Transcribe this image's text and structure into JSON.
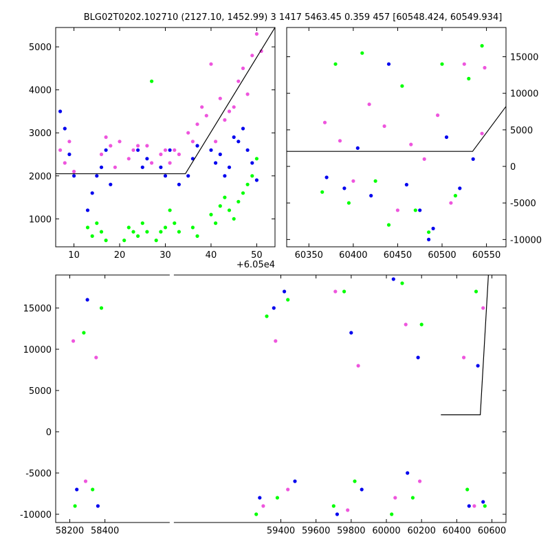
{
  "title": "BLG02T0202.102710 (2127.10, 1452.99)    3 1417 5463.45 0.359 457 [60548.424, 60549.934]",
  "colors": {
    "green": "#00ff00",
    "blue": "#0000ee",
    "magenta": "#ee55dd",
    "model": "#000000"
  },
  "chart_data": [
    {
      "type": "scatter",
      "panel": "top-left",
      "x_offset_label": "+6.05e4",
      "xlim": [
        6,
        54
      ],
      "ylim": [
        350,
        5450
      ],
      "xticks": [
        10,
        20,
        30,
        40,
        50
      ],
      "yticks": [
        1000,
        2000,
        3000,
        4000,
        5000
      ],
      "y_axis_side": "left",
      "grid": false,
      "model_line": {
        "x": [
          6,
          34.4,
          54
        ],
        "y": [
          2050,
          2050,
          5450
        ]
      },
      "series": [
        {
          "color": "magenta",
          "x": [
            7,
            8,
            9,
            10,
            16,
            17,
            18,
            19,
            20,
            22,
            23,
            24,
            26,
            27,
            29,
            30,
            31,
            32,
            33,
            35,
            36,
            37,
            38,
            39,
            40,
            41,
            42,
            43,
            44,
            45,
            46,
            47,
            48,
            49,
            50,
            51
          ],
          "y": [
            2600,
            2300,
            2800,
            2100,
            2500,
            2900,
            2700,
            2200,
            2800,
            2400,
            2600,
            2700,
            2700,
            2300,
            2500,
            2600,
            2300,
            2600,
            2500,
            3000,
            2800,
            3200,
            3600,
            3400,
            4600,
            2800,
            3800,
            3300,
            3500,
            3600,
            4200,
            4500,
            3900,
            4800,
            5300,
            4900
          ]
        },
        {
          "color": "blue",
          "x": [
            7,
            8,
            9,
            10,
            13,
            14,
            15,
            16,
            17,
            18,
            24,
            25,
            26,
            29,
            30,
            31,
            33,
            35,
            36,
            37,
            40,
            41,
            42,
            43,
            44,
            45,
            46,
            47,
            48,
            49,
            50
          ],
          "y": [
            3500,
            3100,
            2500,
            2000,
            1200,
            1600,
            2000,
            2200,
            2600,
            1800,
            2600,
            2200,
            2400,
            2200,
            2000,
            2600,
            1800,
            2000,
            2400,
            2700,
            2600,
            2300,
            2500,
            2000,
            2200,
            2900,
            2800,
            3100,
            2600,
            2300,
            1900
          ]
        },
        {
          "color": "green",
          "x": [
            13,
            14,
            15,
            16,
            17,
            21,
            22,
            23,
            24,
            25,
            26,
            27,
            28,
            29,
            30,
            31,
            32,
            33,
            36,
            37,
            40,
            41,
            42,
            43,
            44,
            45,
            46,
            47,
            48,
            49,
            50
          ],
          "y": [
            800,
            600,
            900,
            700,
            500,
            500,
            800,
            700,
            600,
            900,
            700,
            4200,
            500,
            700,
            800,
            1200,
            900,
            700,
            800,
            600,
            1100,
            900,
            1300,
            1500,
            1200,
            1000,
            1400,
            1600,
            1800,
            2000,
            2400
          ]
        }
      ]
    },
    {
      "type": "scatter",
      "panel": "top-right",
      "xlim": [
        60325,
        60572
      ],
      "ylim": [
        -11000,
        19000
      ],
      "xticks": [
        60350,
        60400,
        60450,
        60500,
        60550
      ],
      "yticks": [
        -10000,
        -5000,
        0,
        5000,
        10000,
        15000
      ],
      "y_axis_side": "right",
      "grid": false,
      "model_line": {
        "x": [
          60325,
          60534.4,
          60572
        ],
        "y": [
          2050,
          2050,
          8200
        ]
      },
      "series": [
        {
          "color": "green",
          "x": [
            60365,
            60380,
            60395,
            60410,
            60425,
            60440,
            60455,
            60470,
            60485,
            60500,
            60515,
            60530,
            60545
          ],
          "y": [
            -3500,
            14000,
            -5000,
            15500,
            -2000,
            -8000,
            11000,
            -6000,
            -9000,
            14000,
            -4000,
            12000,
            16500
          ]
        },
        {
          "color": "blue",
          "x": [
            60370,
            60390,
            60405,
            60420,
            60440,
            60460,
            60475,
            60485,
            60490,
            60505,
            60520,
            60535
          ],
          "y": [
            -1500,
            -3000,
            2500,
            -4000,
            14000,
            -2500,
            -6000,
            -10000,
            -8500,
            4000,
            -3000,
            1000
          ]
        },
        {
          "color": "magenta",
          "x": [
            60368,
            60385,
            60400,
            60418,
            60435,
            60450,
            60465,
            60480,
            60495,
            60510,
            60525,
            60545,
            60548
          ],
          "y": [
            6000,
            3500,
            -2000,
            8500,
            5500,
            -6000,
            3000,
            1000,
            7000,
            -5000,
            14000,
            4500,
            13500
          ]
        }
      ]
    },
    {
      "type": "scatter",
      "panel": "bottom",
      "xlim": [
        58120,
        60680
      ],
      "ylim": [
        -11000,
        19000
      ],
      "xticks": [
        58200,
        58400,
        59400,
        59600,
        59800,
        60000,
        60200,
        60400,
        60600
      ],
      "yticks": [
        -10000,
        -5000,
        0,
        5000,
        10000,
        15000
      ],
      "y_axis_side": "left",
      "grid": false,
      "model_line": {
        "x": [
          60310,
          60534,
          60580
        ],
        "y": [
          2050,
          2050,
          19000
        ]
      },
      "series": [
        {
          "color": "green",
          "x": [
            58230,
            58280,
            58330,
            58380,
            59260,
            59320,
            59380,
            59440,
            59700,
            59760,
            59820,
            60030,
            60090,
            60150,
            60200,
            60460,
            60510,
            60560
          ],
          "y": [
            -9000,
            12000,
            -7000,
            15000,
            -10000,
            14000,
            -8000,
            16000,
            -9000,
            17000,
            -6000,
            -10000,
            18000,
            -8000,
            13000,
            -7000,
            17000,
            -9000
          ]
        },
        {
          "color": "blue",
          "x": [
            58240,
            58300,
            58360,
            59280,
            59360,
            59420,
            59480,
            59720,
            59800,
            59860,
            60040,
            60120,
            60180,
            60470,
            60520,
            60550
          ],
          "y": [
            -7000,
            16000,
            -9000,
            -8000,
            15000,
            17000,
            -6000,
            -10000,
            12000,
            -7000,
            18500,
            -5000,
            9000,
            -9000,
            8000,
            -8500
          ]
        },
        {
          "color": "magenta",
          "x": [
            58220,
            58290,
            58350,
            59300,
            59370,
            59440,
            59710,
            59780,
            59840,
            60050,
            60110,
            60190,
            60440,
            60500,
            60550
          ],
          "y": [
            11000,
            -6000,
            9000,
            -9000,
            11000,
            -7000,
            17000,
            -9500,
            8000,
            -8000,
            13000,
            -6000,
            9000,
            -9000,
            15000
          ]
        }
      ]
    }
  ]
}
